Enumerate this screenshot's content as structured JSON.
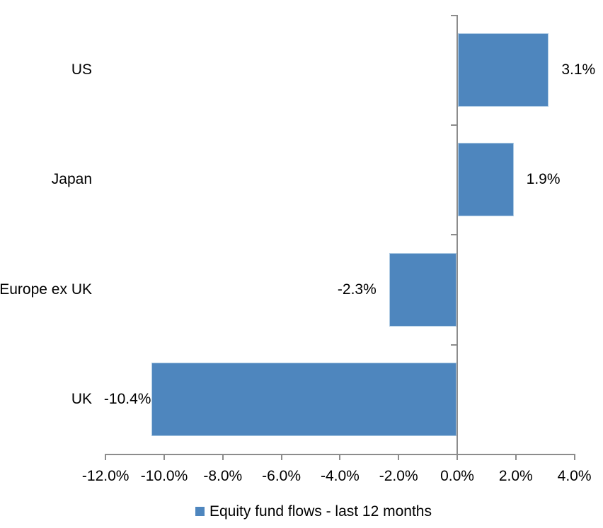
{
  "chart_data": {
    "type": "bar",
    "orientation": "horizontal",
    "title": "",
    "categories": [
      "US",
      "Japan",
      "Europe ex UK",
      "UK"
    ],
    "series": [
      {
        "name": "Equity fund flows - last 12 months",
        "values": [
          3.1,
          1.9,
          -2.3,
          -10.4
        ],
        "data_labels": [
          "3.1%",
          "1.9%",
          "-2.3%",
          "-10.4%"
        ],
        "color": "#4E86BE"
      }
    ],
    "xlim": [
      -12,
      4
    ],
    "x_ticks": [
      -12,
      -10,
      -8,
      -6,
      -4,
      -2,
      0,
      2,
      4
    ],
    "x_tick_labels": [
      "-12.0%",
      "-10.0%",
      "-8.0%",
      "-6.0%",
      "-4.0%",
      "-2.0%",
      "0.0%",
      "2.0%",
      "4.0%"
    ],
    "grid": false,
    "legend": {
      "position": "bottom",
      "label": "Equity fund flows - last 12 months",
      "marker_color": "#4E86BE"
    },
    "colors": {
      "bar": "#4E86BE",
      "bar_border": "#AECBE4",
      "axis": "#8C8C8C",
      "text": "#000000",
      "background": "#FFFFFF"
    }
  }
}
